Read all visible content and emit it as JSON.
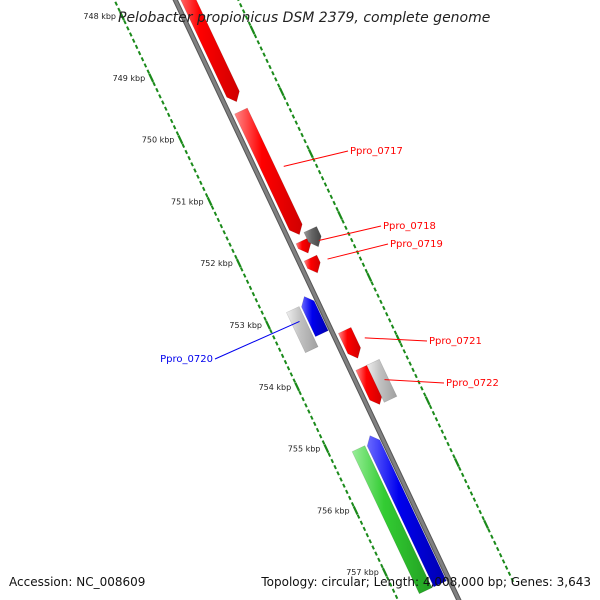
{
  "title": "Pelobacter propionicus DSM 2379, complete genome",
  "footer": {
    "accession": "Accession: NC_008609",
    "topology": "Topology: circular; Length: 4,008,000 bp; Genes: 3,643"
  },
  "colors": {
    "forward": "#ff0000",
    "reverse": "#0000ee",
    "rna": "#33cc33",
    "other": "#c0c0c0",
    "pseudo": "#666666",
    "backbone": "#808080",
    "tick": "#1a8a1a"
  },
  "ruler": {
    "unit": "kbp",
    "ticks": [
      {
        "value": 748,
        "label": "748 kbp"
      },
      {
        "value": 749,
        "label": "749 kbp"
      },
      {
        "value": 750,
        "label": "750 kbp"
      },
      {
        "value": 751,
        "label": "751 kbp"
      },
      {
        "value": 752,
        "label": "752 kbp"
      },
      {
        "value": 753,
        "label": "753 kbp"
      },
      {
        "value": 754,
        "label": "754 kbp"
      },
      {
        "value": 755,
        "label": "755 kbp"
      },
      {
        "value": 756,
        "label": "756 kbp"
      },
      {
        "value": 757,
        "label": "757 kbp"
      }
    ]
  },
  "features": [
    {
      "id": "f-a",
      "start": 747.9,
      "end": 749.85,
      "strand": "+",
      "color": "#ff0000",
      "label": ""
    },
    {
      "id": "f-b",
      "start": 750.0,
      "end": 752.0,
      "strand": "+",
      "color": "#ff0000",
      "label": "Ppro_0717"
    },
    {
      "id": "f-c",
      "start": 752.1,
      "end": 752.3,
      "strand": "+",
      "color": "#ff0000",
      "label": "Ppro_0718"
    },
    {
      "id": "f-d",
      "start": 752.38,
      "end": 752.62,
      "strand": "+",
      "color": "#ff0000",
      "label": "Ppro_0719"
    },
    {
      "id": "f-e",
      "start": 752.0,
      "end": 752.28,
      "strand": "+",
      "color": "#666666",
      "label": ""
    },
    {
      "id": "f-f",
      "start": 752.85,
      "end": 753.45,
      "strand": "-",
      "color": "#0000ee",
      "label": "Ppro_0720"
    },
    {
      "id": "f-g",
      "start": 752.95,
      "end": 753.6,
      "strand": "none",
      "color": "#c0c0c0",
      "label": ""
    },
    {
      "id": "f-h",
      "start": 753.55,
      "end": 754.0,
      "strand": "+",
      "color": "#ff0000",
      "label": "Ppro_0721"
    },
    {
      "id": "f-i",
      "start": 754.15,
      "end": 754.75,
      "strand": "+",
      "color": "#ff0000",
      "label": "Ppro_0722"
    },
    {
      "id": "f-j",
      "start": 754.15,
      "end": 754.75,
      "strand": "none",
      "color": "#c0c0c0",
      "label": ""
    },
    {
      "id": "f-k",
      "start": 755.1,
      "end": 757.5,
      "strand": "-",
      "color": "#0000ee",
      "label": ""
    },
    {
      "id": "f-l",
      "start": 755.2,
      "end": 757.5,
      "strand": "none",
      "color": "#33cc33",
      "label": ""
    }
  ]
}
